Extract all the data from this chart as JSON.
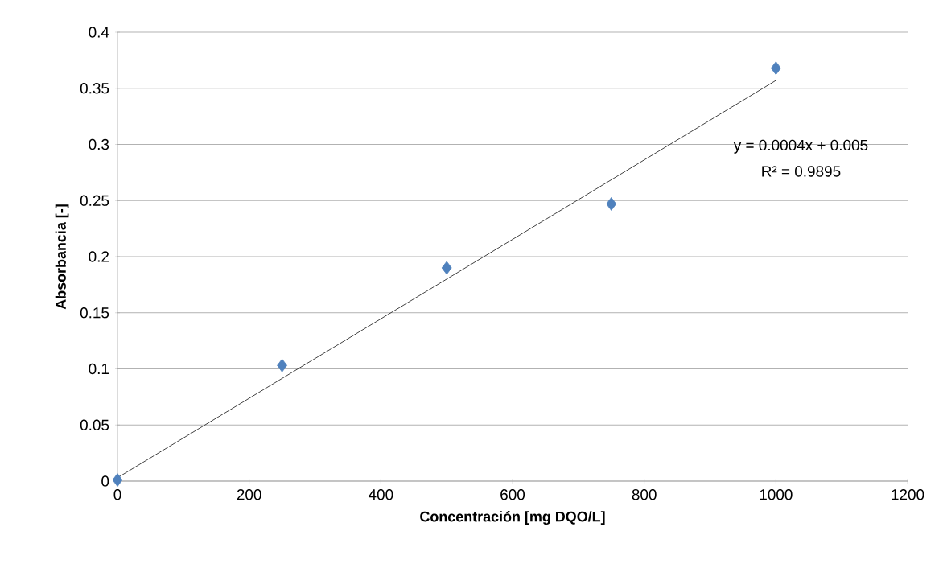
{
  "chart_data": {
    "type": "scatter",
    "xlabel": "Concentración [mg DQO/L]",
    "ylabel": "Absorbancia [-]",
    "series": [
      {
        "color": "#4f81bd",
        "marker": "diamond",
        "x": [
          0,
          250,
          500,
          750,
          1000
        ],
        "values": [
          0.001,
          0.103,
          0.19,
          0.247,
          0.368
        ]
      },
      {
        "type": "line",
        "color": "#404040",
        "marker": "none",
        "x": [
          0,
          1000
        ],
        "values": [
          0.003,
          0.357
        ]
      }
    ],
    "annotations": [
      "y = 0.0004x + 0.005",
      "R² = 0.9895"
    ],
    "xlim": [
      0,
      1200
    ],
    "ylim": [
      0,
      0.4
    ],
    "xticks": [
      0,
      200,
      400,
      600,
      800,
      1000,
      1200
    ],
    "yticks": [
      0,
      0.05,
      0.1,
      0.15,
      0.2,
      0.25,
      0.3,
      0.35,
      0.4
    ],
    "grid": "y"
  }
}
